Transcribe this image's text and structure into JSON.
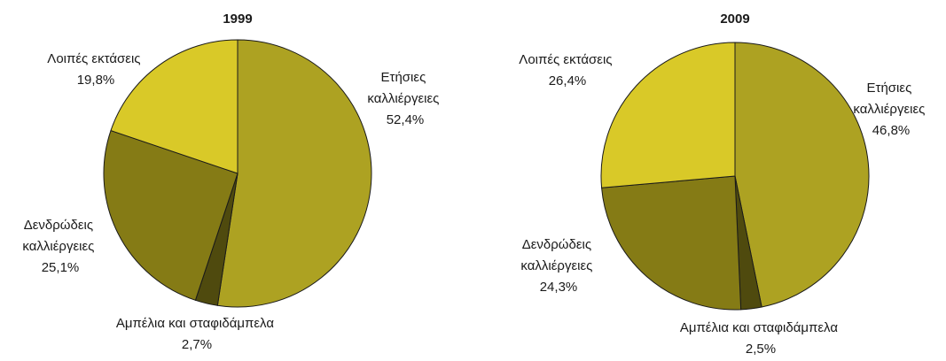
{
  "colors": {
    "annual": "#ADA222",
    "orchards": "#857B15",
    "vines": "#4F4A0E",
    "other": "#D9C928",
    "stroke": "#1a1a1a"
  },
  "chart_data": [
    {
      "type": "pie",
      "title": "1999",
      "slices": [
        {
          "key": "annual",
          "label_lines": [
            "Ετήσιες",
            "καλλιέργειες"
          ],
          "pct_label": "52,4%",
          "value": 52.4
        },
        {
          "key": "vines",
          "label_lines": [
            "Αμπέλια και σταφιδάμπελα"
          ],
          "pct_label": "2,7%",
          "value": 2.7
        },
        {
          "key": "orchards",
          "label_lines": [
            "Δενδρώδεις",
            "καλλιέργειες"
          ],
          "pct_label": "25,1%",
          "value": 25.1
        },
        {
          "key": "other",
          "label_lines": [
            "Λοιπές εκτάσεις"
          ],
          "pct_label": "19,8%",
          "value": 19.8
        }
      ]
    },
    {
      "type": "pie",
      "title": "2009",
      "slices": [
        {
          "key": "annual",
          "label_lines": [
            "Ετήσιες",
            "καλλιέργειες"
          ],
          "pct_label": "46,8%",
          "value": 46.8
        },
        {
          "key": "vines",
          "label_lines": [
            "Αμπέλια και σταφιδάμπελα"
          ],
          "pct_label": "2,5%",
          "value": 2.5
        },
        {
          "key": "orchards",
          "label_lines": [
            "Δενδρώδεις",
            "καλλιέργειες"
          ],
          "pct_label": "24,3%",
          "value": 24.3
        },
        {
          "key": "other",
          "label_lines": [
            "Λοιπές εκτάσεις"
          ],
          "pct_label": "26,4%",
          "value": 26.4
        }
      ]
    }
  ]
}
